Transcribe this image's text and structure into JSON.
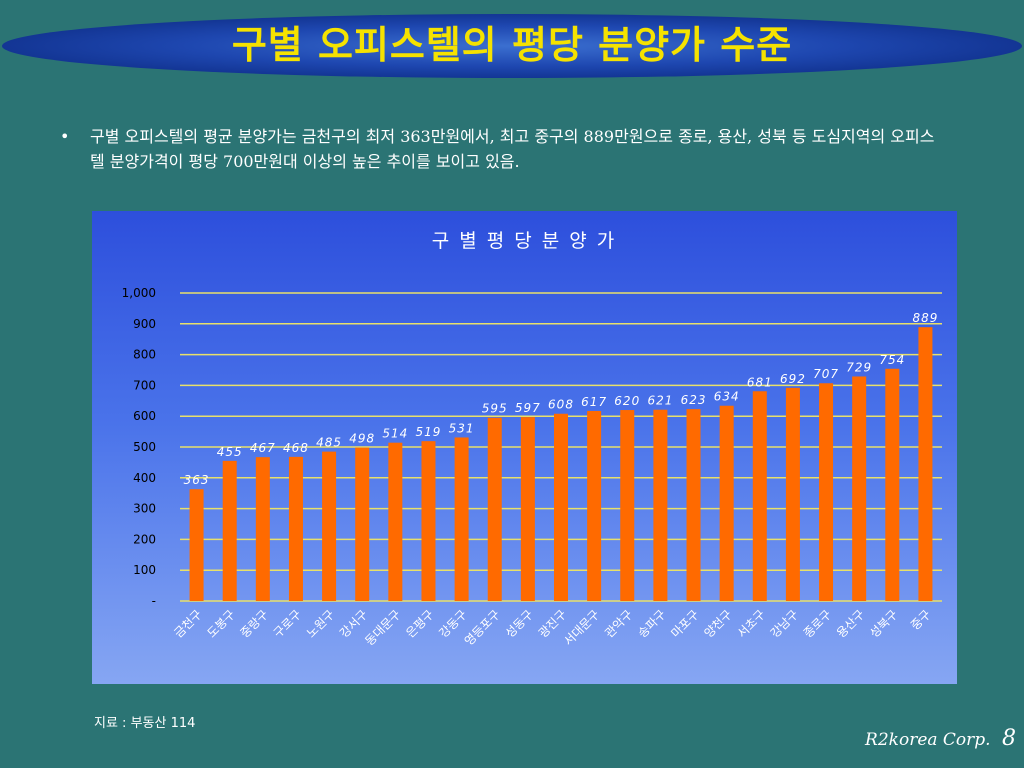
{
  "slide": {
    "title": "구별 오피스텔의 평당 분양가 수준",
    "bullet_marker": "•",
    "bullet_text": "구별 오피스텔의 평균 분양가는 금천구의 최저 363만원에서, 최고 중구의 889만원으로 종로, 용산, 성북 등 도심지역의 오피스텔 분양가격이 평당 700만원대 이상의 높은 추이를 보이고 있음.",
    "source": "지료 : 부동산 114",
    "footer_company": "R2korea Corp.",
    "page_number": "8"
  },
  "colors": {
    "background": "#2b7474",
    "title_text": "#f5e200",
    "bar": "#ff6a00",
    "gridline": "#e8e06a"
  },
  "chart_data": {
    "type": "bar",
    "title": "구 별  평 당  분 양 가",
    "xlabel": "",
    "ylabel": "",
    "ylim": [
      0,
      1000
    ],
    "y_ticks": [
      "-",
      "100",
      "200",
      "300",
      "400",
      "500",
      "600",
      "700",
      "800",
      "900",
      "1,000"
    ],
    "grid": true,
    "categories": [
      "금천구",
      "도봉구",
      "중랑구",
      "구로구",
      "노원구",
      "강서구",
      "동대문구",
      "은평구",
      "강동구",
      "영등포구",
      "성동구",
      "광진구",
      "서대문구",
      "관악구",
      "송파구",
      "마포구",
      "양천구",
      "서초구",
      "강남구",
      "종로구",
      "용산구",
      "성북구",
      "중구"
    ],
    "values": [
      363,
      455,
      467,
      468,
      485,
      498,
      514,
      519,
      531,
      595,
      597,
      608,
      617,
      620,
      621,
      623,
      634,
      681,
      692,
      707,
      729,
      754,
      889
    ]
  }
}
